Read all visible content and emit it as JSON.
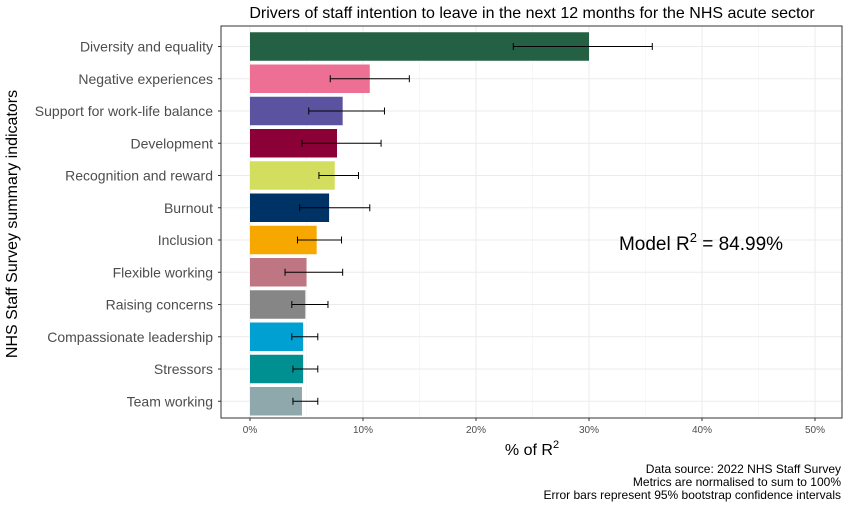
{
  "chart_data": {
    "type": "bar",
    "orientation": "horizontal",
    "title": "Drivers of staff intention to leave in the next 12 months for the NHS acute sector",
    "xlabel": "% of R",
    "xlabel_superscript": "2",
    "ylabel": "NHS Staff Survey summary indicators",
    "xlim": [
      0,
      0.5
    ],
    "xticks": [
      0,
      0.1,
      0.2,
      0.3,
      0.4,
      0.5
    ],
    "xtick_labels": [
      "0%",
      "10%",
      "20%",
      "30%",
      "40%",
      "50%"
    ],
    "grid": true,
    "categories": [
      "Diversity and equality",
      "Negative experiences",
      "Support for work-life balance",
      "Development",
      "Recognition and reward",
      "Burnout",
      "Inclusion",
      "Flexible working",
      "Raising concerns",
      "Compassionate leadership",
      "Stressors",
      "Team working"
    ],
    "values": [
      0.3,
      0.106,
      0.082,
      0.077,
      0.075,
      0.07,
      0.059,
      0.05,
      0.049,
      0.047,
      0.047,
      0.046
    ],
    "error_low": [
      0.233,
      0.071,
      0.052,
      0.046,
      0.061,
      0.044,
      0.042,
      0.031,
      0.037,
      0.037,
      0.038,
      0.038
    ],
    "error_high": [
      0.356,
      0.141,
      0.119,
      0.116,
      0.096,
      0.106,
      0.081,
      0.082,
      0.069,
      0.06,
      0.06,
      0.06
    ],
    "colors": [
      "#246144",
      "#ee6f94",
      "#5b53a0",
      "#8b0037",
      "#d3de5e",
      "#003365",
      "#f7a800",
      "#bd7682",
      "#868686",
      "#00a1d2",
      "#009092",
      "#8ea8ac"
    ],
    "annotation": {
      "text_prefix": "Model R",
      "superscript": "2",
      "text_suffix": " = 84.99%"
    }
  },
  "caption": [
    "Data source: 2022 NHS Staff Survey",
    "Metrics are normalised to sum to 100%",
    "Error bars represent 95% bootstrap confidence intervals"
  ]
}
